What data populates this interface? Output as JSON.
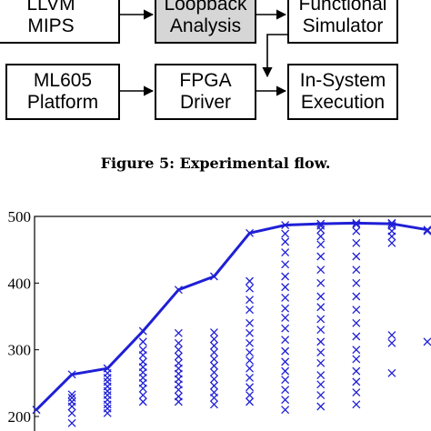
{
  "flow": {
    "llvm": [
      "LLVM",
      "MIPS"
    ],
    "loopback": [
      "Loopback",
      "Analysis"
    ],
    "functional": [
      "Functional",
      "Simulator"
    ],
    "ml605": [
      "ML605",
      "Platform"
    ],
    "fpga": [
      "FPGA",
      "Driver"
    ],
    "insystem": [
      "In-System",
      "Execution"
    ]
  },
  "caption": "Figure 5: Experimental flow.",
  "colors": {
    "series": "#1f1fd6",
    "shaded_box": "#d6d6d6"
  },
  "chart_data": {
    "type": "scatter",
    "ylim": [
      200,
      500
    ],
    "yticks": [
      200,
      300,
      400,
      500
    ],
    "xticks": [],
    "x": [
      1,
      2,
      3,
      4,
      5,
      6,
      7,
      8,
      9,
      10,
      11,
      12
    ],
    "series": [
      {
        "type": "line",
        "values": [
          210,
          263,
          272,
          328,
          390,
          410,
          475,
          487,
          489,
          490,
          489,
          480
        ]
      },
      {
        "type": "scatter",
        "marker": "x",
        "points": [
          [
            1,
            210
          ],
          [
            2,
            190
          ],
          [
            2,
            205
          ],
          [
            2,
            215
          ],
          [
            2,
            222
          ],
          [
            2,
            228
          ],
          [
            2,
            233
          ],
          [
            3,
            205
          ],
          [
            3,
            212
          ],
          [
            3,
            218
          ],
          [
            3,
            225
          ],
          [
            3,
            232
          ],
          [
            3,
            238
          ],
          [
            3,
            245
          ],
          [
            3,
            252
          ],
          [
            3,
            258
          ],
          [
            3,
            265
          ],
          [
            3,
            272
          ],
          [
            4,
            222
          ],
          [
            4,
            232
          ],
          [
            4,
            242
          ],
          [
            4,
            250
          ],
          [
            4,
            258
          ],
          [
            4,
            266
          ],
          [
            4,
            274
          ],
          [
            4,
            282
          ],
          [
            4,
            292
          ],
          [
            4,
            300
          ],
          [
            4,
            312
          ],
          [
            5,
            222
          ],
          [
            5,
            230
          ],
          [
            5,
            240
          ],
          [
            5,
            248
          ],
          [
            5,
            256
          ],
          [
            5,
            264
          ],
          [
            5,
            272
          ],
          [
            5,
            280
          ],
          [
            5,
            290
          ],
          [
            5,
            300
          ],
          [
            5,
            310
          ],
          [
            5,
            325
          ],
          [
            6,
            218
          ],
          [
            6,
            228
          ],
          [
            6,
            236
          ],
          [
            6,
            246
          ],
          [
            6,
            256
          ],
          [
            6,
            266
          ],
          [
            6,
            276
          ],
          [
            6,
            286
          ],
          [
            6,
            296
          ],
          [
            6,
            306
          ],
          [
            6,
            316
          ],
          [
            6,
            326
          ],
          [
            7,
            222
          ],
          [
            7,
            232
          ],
          [
            7,
            244
          ],
          [
            7,
            258
          ],
          [
            7,
            272
          ],
          [
            7,
            284
          ],
          [
            7,
            296
          ],
          [
            7,
            310
          ],
          [
            7,
            325
          ],
          [
            7,
            340
          ],
          [
            7,
            360
          ],
          [
            7,
            375
          ],
          [
            7,
            392
          ],
          [
            7,
            403
          ],
          [
            8,
            210
          ],
          [
            8,
            225
          ],
          [
            8,
            240
          ],
          [
            8,
            255
          ],
          [
            8,
            268
          ],
          [
            8,
            282
          ],
          [
            8,
            298
          ],
          [
            8,
            315
          ],
          [
            8,
            332
          ],
          [
            8,
            348
          ],
          [
            8,
            362
          ],
          [
            8,
            378
          ],
          [
            8,
            394
          ],
          [
            8,
            410
          ],
          [
            8,
            428
          ],
          [
            8,
            446
          ],
          [
            8,
            462
          ],
          [
            8,
            474
          ],
          [
            9,
            215
          ],
          [
            9,
            232
          ],
          [
            9,
            248
          ],
          [
            9,
            262
          ],
          [
            9,
            280
          ],
          [
            9,
            296
          ],
          [
            9,
            312
          ],
          [
            9,
            330
          ],
          [
            9,
            346
          ],
          [
            9,
            364
          ],
          [
            9,
            380
          ],
          [
            9,
            400
          ],
          [
            9,
            420
          ],
          [
            9,
            440
          ],
          [
            9,
            458
          ],
          [
            9,
            470
          ],
          [
            9,
            480
          ],
          [
            9,
            486
          ],
          [
            10,
            218
          ],
          [
            10,
            236
          ],
          [
            10,
            252
          ],
          [
            10,
            268
          ],
          [
            10,
            286
          ],
          [
            10,
            300
          ],
          [
            10,
            320
          ],
          [
            10,
            340
          ],
          [
            10,
            360
          ],
          [
            10,
            380
          ],
          [
            10,
            400
          ],
          [
            10,
            420
          ],
          [
            10,
            440
          ],
          [
            10,
            460
          ],
          [
            10,
            478
          ],
          [
            10,
            488
          ],
          [
            11,
            265
          ],
          [
            11,
            310
          ],
          [
            11,
            322
          ],
          [
            11,
            460
          ],
          [
            11,
            470
          ],
          [
            11,
            478
          ],
          [
            11,
            486
          ],
          [
            11,
            490
          ],
          [
            12,
            312
          ],
          [
            12,
            478
          ]
        ]
      }
    ]
  }
}
